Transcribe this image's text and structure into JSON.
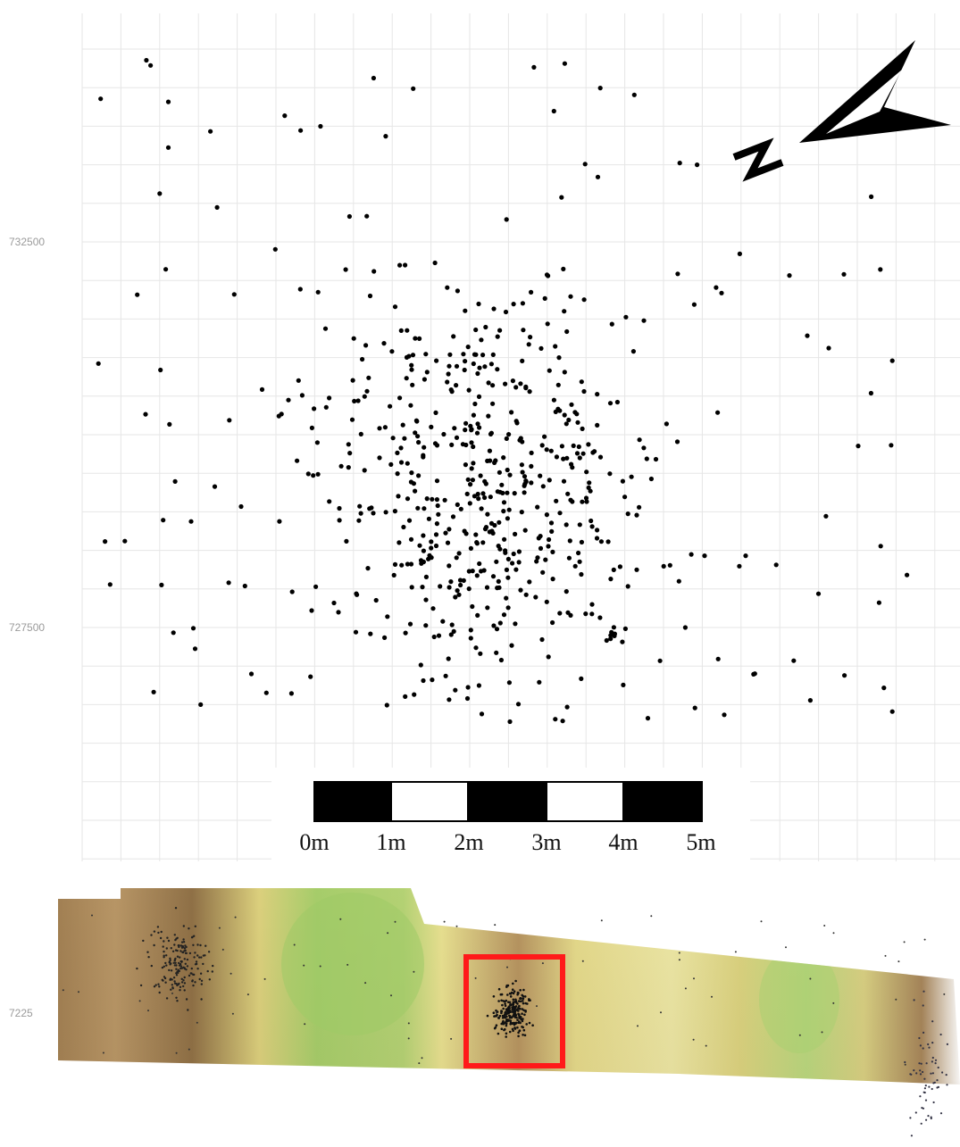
{
  "y_axis": {
    "ticks": [
      "732500",
      "727500"
    ]
  },
  "inset_y_tick": "7225",
  "scale_bar": {
    "labels": [
      "0m",
      "1m",
      "2m",
      "3m",
      "4m",
      "5m"
    ]
  },
  "north_arrow": {
    "label": "N",
    "icon": "north-arrow-icon"
  },
  "colors": {
    "points": "#000000",
    "grid": "#e6e6e6",
    "highlight": "#ff1a1a",
    "terrain_brown": "#9c7a4e",
    "terrain_yellow": "#e7df8a",
    "terrain_green": "#a9cf6c"
  }
}
